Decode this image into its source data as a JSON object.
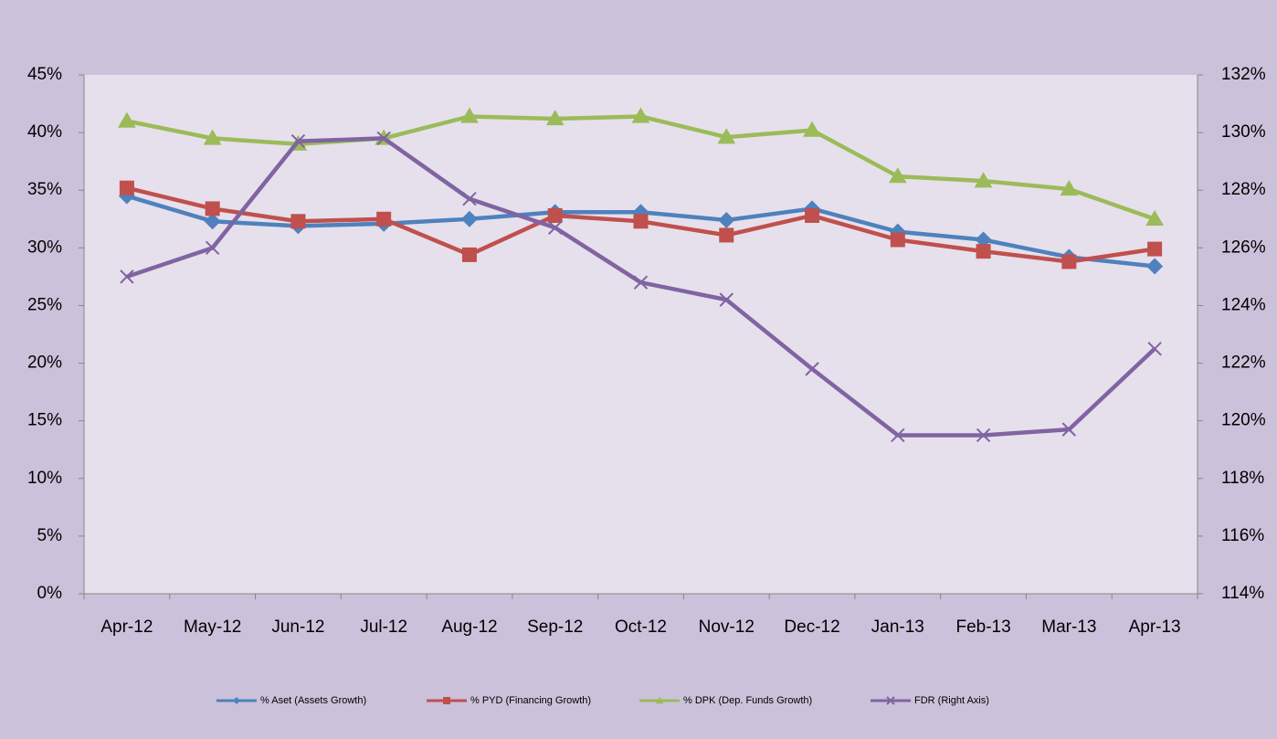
{
  "chart_data": {
    "type": "line",
    "categories": [
      "Apr-12",
      "May-12",
      "Jun-12",
      "Jul-12",
      "Aug-12",
      "Sep-12",
      "Oct-12",
      "Nov-12",
      "Dec-12",
      "Jan-13",
      "Feb-13",
      "Mar-13",
      "Apr-13"
    ],
    "series": [
      {
        "name": "% Aset (Assets Growth)",
        "color": "#4f81bd",
        "marker": "diamond",
        "values": [
          34.5,
          32.3,
          31.9,
          32.1,
          32.5,
          33.1,
          33.1,
          32.4,
          33.4,
          31.4,
          30.7,
          29.2,
          28.4
        ]
      },
      {
        "name": "% PYD (Financing Growth)",
        "color": "#c0504d",
        "marker": "square",
        "values": [
          35.2,
          33.4,
          32.3,
          32.5,
          29.4,
          32.8,
          32.3,
          31.1,
          32.8,
          30.7,
          29.7,
          28.8,
          29.9
        ]
      },
      {
        "name": "% DPK (Dep. Funds Growth)",
        "color": "#9bbb59",
        "marker": "triangle",
        "values": [
          41.0,
          39.5,
          39.0,
          39.5,
          41.4,
          41.2,
          41.4,
          39.6,
          40.2,
          36.2,
          35.8,
          35.1,
          32.5
        ]
      },
      {
        "name": "FDR (Right Axis)",
        "color": "#8064a2",
        "marker": "x",
        "axis": "y2",
        "values": [
          125.0,
          126.0,
          129.7,
          129.8,
          127.7,
          126.7,
          124.8,
          124.2,
          121.8,
          119.5,
          119.5,
          119.7,
          122.5
        ]
      }
    ],
    "ylim": [
      0,
      45
    ],
    "yticks": [
      {
        "value": 0,
        "label": "0%"
      },
      {
        "value": 5,
        "label": "5%"
      },
      {
        "value": 10,
        "label": "10%"
      },
      {
        "value": 15,
        "label": "15%"
      },
      {
        "value": 20,
        "label": "20%"
      },
      {
        "value": 25,
        "label": "25%"
      },
      {
        "value": 30,
        "label": "30%"
      },
      {
        "value": 35,
        "label": "35%"
      },
      {
        "value": 40,
        "label": "40%"
      },
      {
        "value": 45,
        "label": "45%"
      }
    ],
    "y2lim": [
      114,
      132
    ],
    "y2ticks": [
      {
        "value": 114,
        "label": "114%"
      },
      {
        "value": 116,
        "label": "116%"
      },
      {
        "value": 118,
        "label": "118%"
      },
      {
        "value": 120,
        "label": "120%"
      },
      {
        "value": 122,
        "label": "122%"
      },
      {
        "value": 124,
        "label": "124%"
      },
      {
        "value": 126,
        "label": "126%"
      },
      {
        "value": 128,
        "label": "128%"
      },
      {
        "value": 130,
        "label": "130%"
      },
      {
        "value": 132,
        "label": "132%"
      }
    ],
    "grid": false,
    "legend": "bottom"
  }
}
